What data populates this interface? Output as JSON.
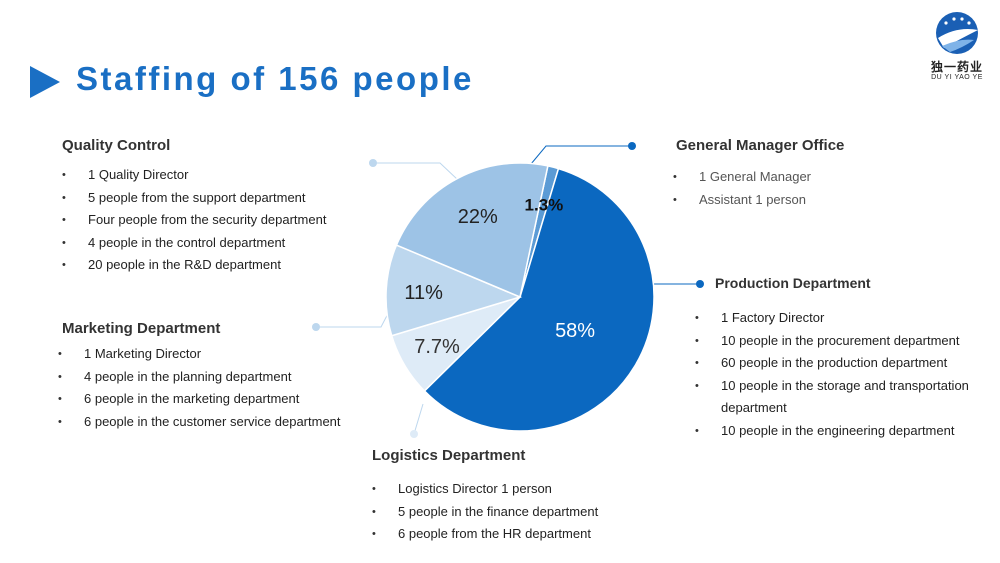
{
  "page": {
    "title": "Staffing of 156 people"
  },
  "logo": {
    "name_cn": "独一药业",
    "name_en": "DU YI YAO YE",
    "icon": "company-logo-icon"
  },
  "sections": {
    "quality_control": {
      "heading": "Quality Control",
      "items": [
        "1 Quality Director",
        "5 people from the support department",
        "Four people from the security department",
        "4 people in the control department",
        "20 people in the R&D department"
      ]
    },
    "marketing": {
      "heading": "Marketing Department",
      "items": [
        "1 Marketing Director",
        "4 people in the planning department",
        "6 people in the marketing department",
        "6 people in the customer service department"
      ]
    },
    "general_manager": {
      "heading": "General Manager Office",
      "items": [
        "1 General Manager",
        "Assistant 1 person"
      ]
    },
    "production": {
      "heading": "Production Department",
      "items": [
        "1 Factory Director",
        "10 people in the procurement department",
        "60 people in the production department",
        "10 people in the storage and transportation department",
        "10 people in the engineering department"
      ]
    },
    "logistics": {
      "heading": "Logistics Department",
      "items": [
        "Logistics Director 1 person",
        "5 people in the finance department",
        "6 people from the HR department"
      ]
    }
  },
  "chart_data": {
    "type": "pie",
    "slices": [
      {
        "label": "1.3%",
        "value": 1.3,
        "color": "#5b9bd5"
      },
      {
        "label": "58%",
        "value": 58,
        "color": "#0b68c0"
      },
      {
        "label": "7.7%",
        "value": 7.7,
        "color": "#deebf7"
      },
      {
        "label": "11%",
        "value": 11,
        "color": "#bdd7ee"
      },
      {
        "label": "22%",
        "value": 22,
        "color": "#9dc3e6"
      }
    ],
    "start_angle_deg": 12,
    "direction": "clockwise"
  },
  "colors": {
    "accent": "#1a6fc4",
    "leader_dark": "#0b68c0",
    "leader_light": "#bdd7ee"
  }
}
